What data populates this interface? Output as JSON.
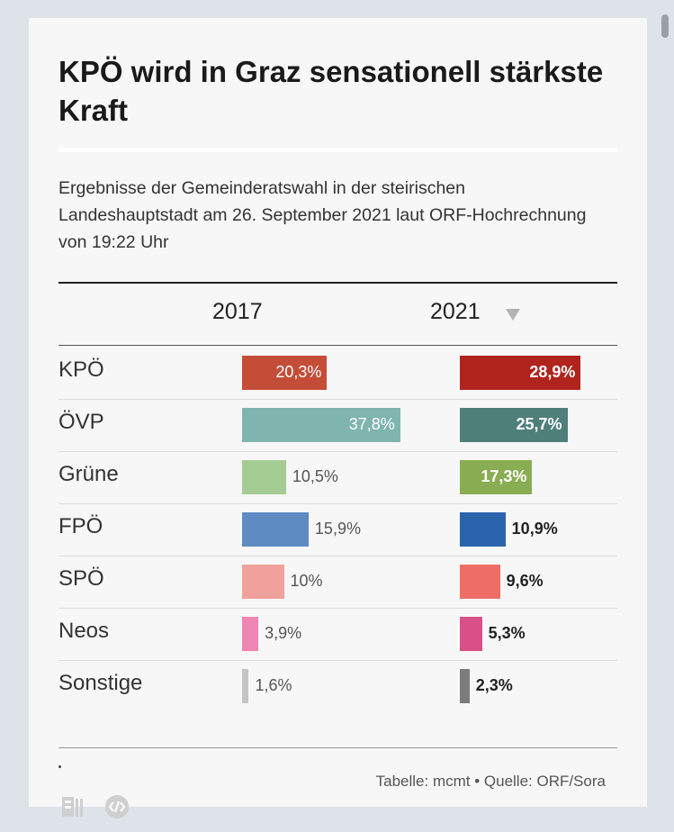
{
  "page": {
    "title": "KPÖ wird in Graz sensationell stärkste Kraft",
    "subtitle": "Ergebnisse der Gemeinderatswahl in der steirischen Landeshauptstadt am 26. September 2021 laut ORF-Hochrechnung von 19:22 Uhr",
    "source": "Tabelle: mcmt • Quelle: ORF/Sora"
  },
  "chart_data": {
    "type": "bar",
    "columns": [
      "2017",
      "2021"
    ],
    "sort": {
      "column": "2021",
      "direction": "descending"
    },
    "categories": [
      "KPÖ",
      "ÖVP",
      "Grüne",
      "FPÖ",
      "SPÖ",
      "Neos",
      "Sonstige"
    ],
    "series": [
      {
        "name": "2017",
        "values": [
          20.3,
          37.8,
          10.5,
          15.9,
          10,
          3.9,
          1.6
        ],
        "labels": [
          "20,3%",
          "37,8%",
          "10,5%",
          "15,9%",
          "10%",
          "3,9%",
          "1,6%"
        ],
        "colors": [
          "#c44d38",
          "#7fb5ae",
          "#a5cc93",
          "#5d8bc2",
          "#f1a19b",
          "#ef86b4",
          "#c4c4c4"
        ]
      },
      {
        "name": "2021",
        "values": [
          28.9,
          25.7,
          17.3,
          10.9,
          9.6,
          5.3,
          2.3
        ],
        "labels": [
          "28,9%",
          "25,7%",
          "17,3%",
          "10,9%",
          "9,6%",
          "5,3%",
          "2,3%"
        ],
        "colors": [
          "#b1231d",
          "#4f7f79",
          "#88ad52",
          "#2c63ad",
          "#ee6d66",
          "#d94f88",
          "#7c7c7c"
        ]
      }
    ]
  }
}
